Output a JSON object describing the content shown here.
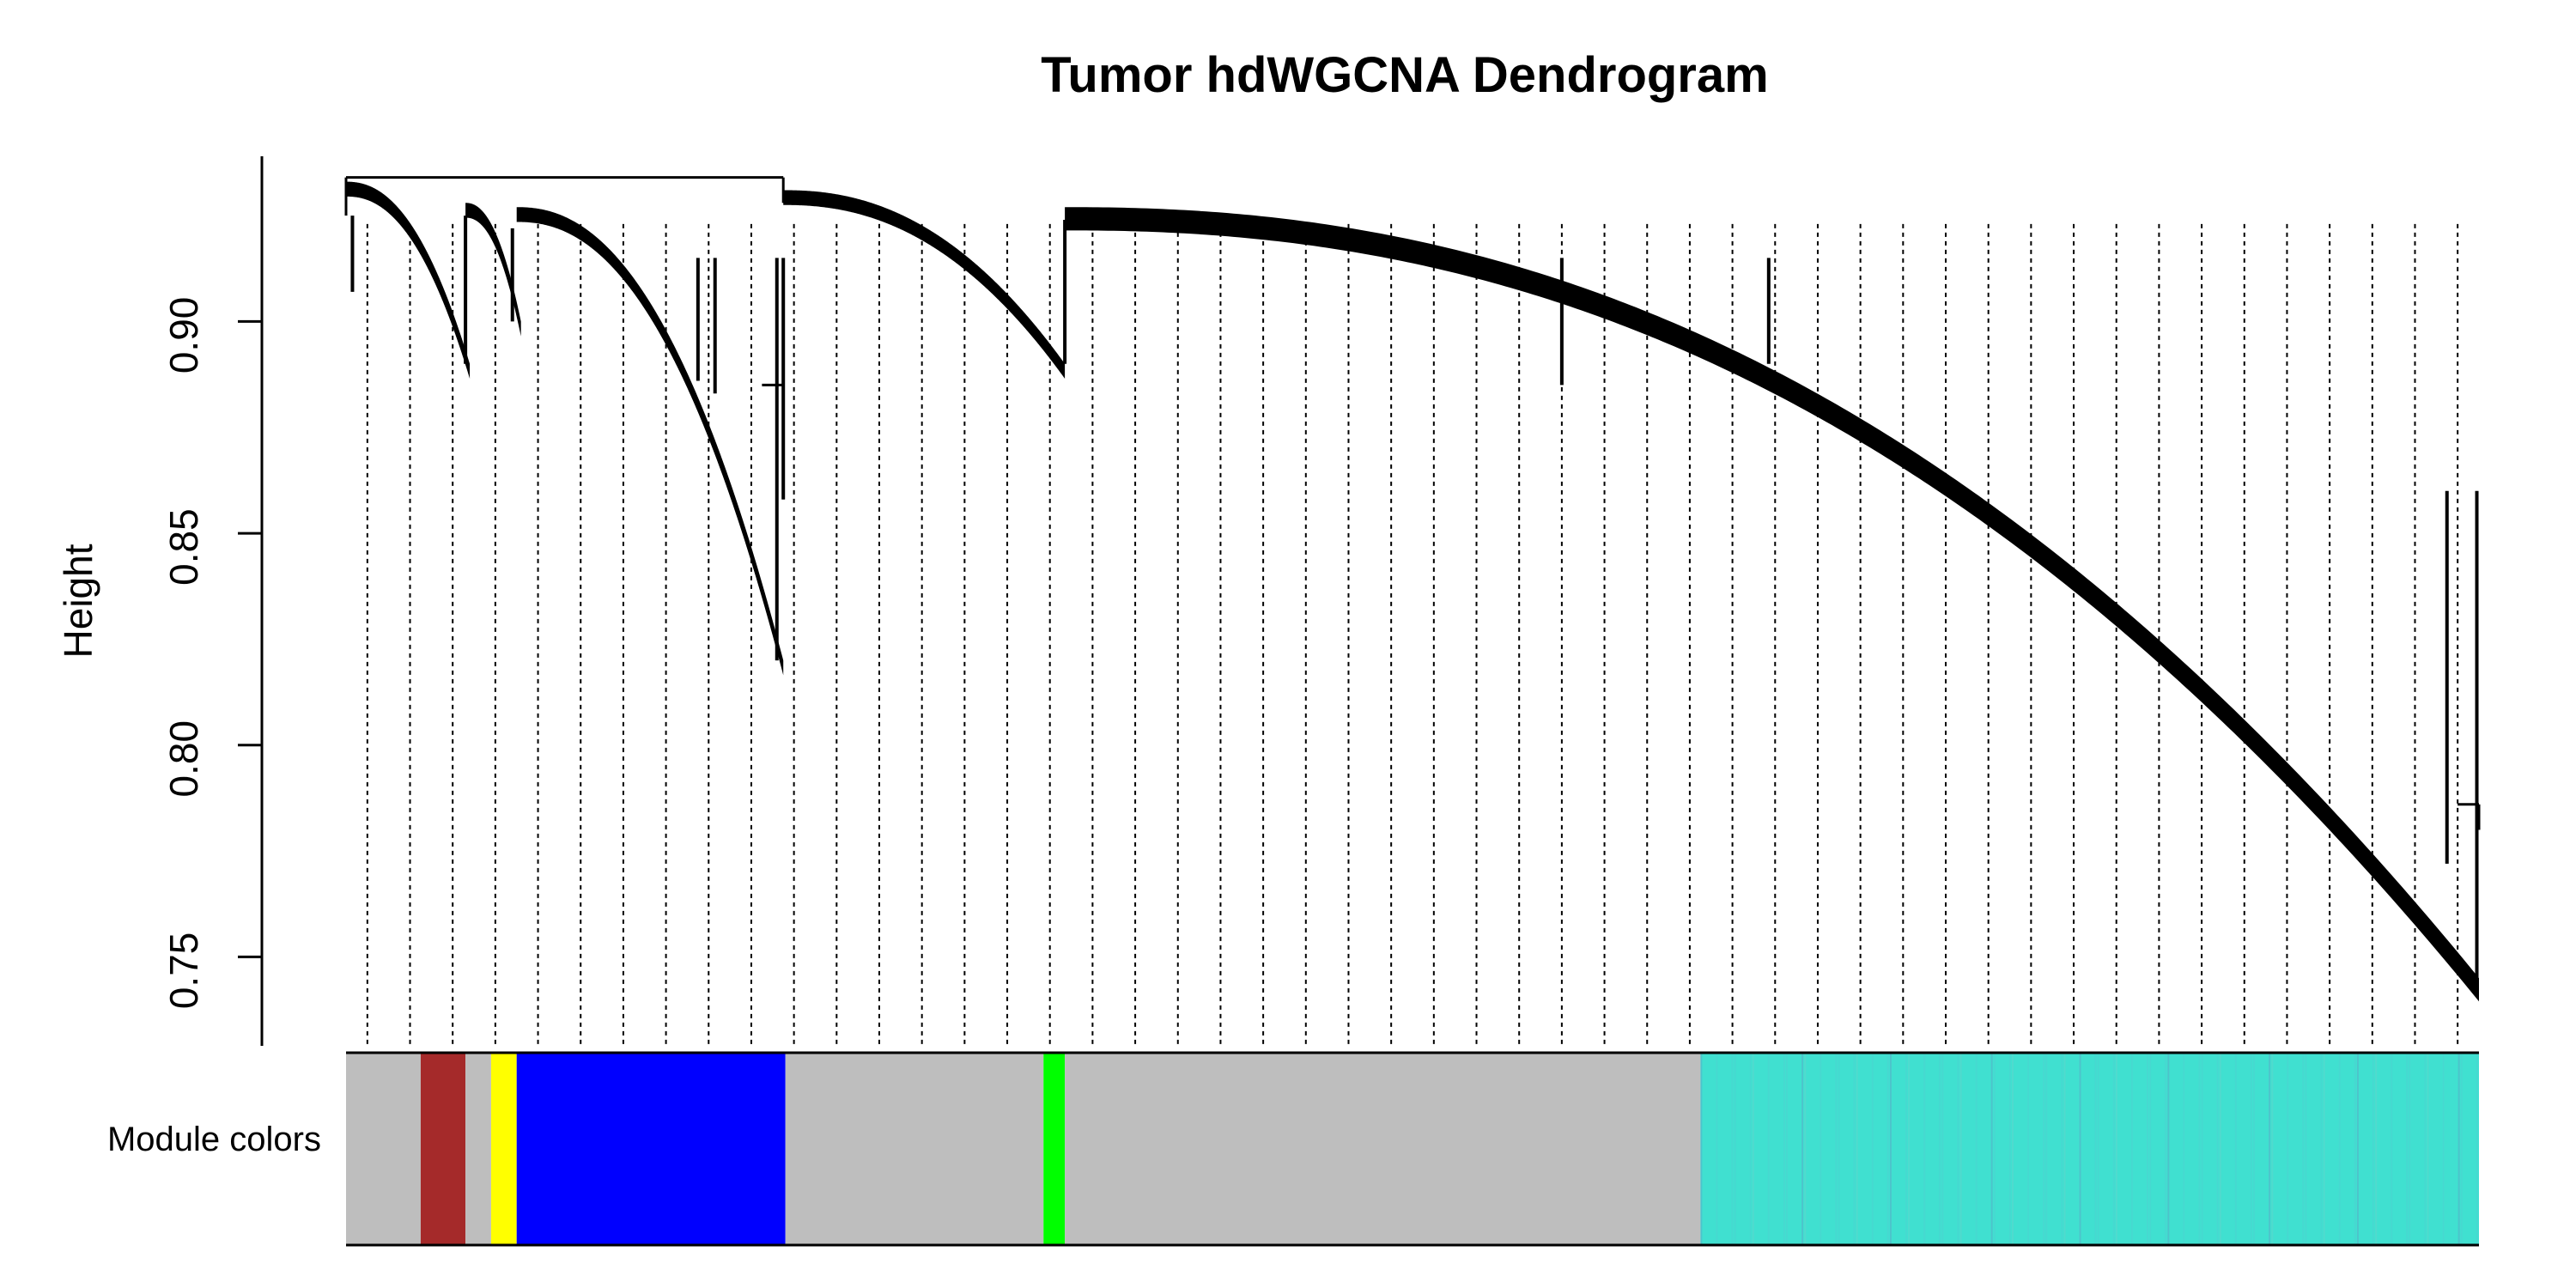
{
  "chart_data": {
    "type": "dendrogram",
    "title": "Tumor hdWGCNA Dendrogram",
    "ylabel": "Height",
    "color_bar_label": "Module colors",
    "yticks": [
      0.75,
      0.8,
      0.85,
      0.9
    ],
    "ytick_labels": [
      "0.75",
      "0.80",
      "0.85",
      "0.90"
    ],
    "ylim": [
      0.729,
      0.939
    ],
    "colors": {
      "grey": "#bebebe",
      "brown": "#a52a2a",
      "yellow": "#ffff00",
      "blue": "#0000ff",
      "green": "#00ff00",
      "turquoise": "#40e0d0"
    },
    "module_color_bands": [
      {
        "module": "grey",
        "start": 0.0,
        "end": 0.035
      },
      {
        "module": "brown",
        "start": 0.035,
        "end": 0.056
      },
      {
        "module": "grey",
        "start": 0.056,
        "end": 0.068
      },
      {
        "module": "yellow",
        "start": 0.068,
        "end": 0.08
      },
      {
        "module": "blue",
        "start": 0.08,
        "end": 0.206
      },
      {
        "module": "grey",
        "start": 0.206,
        "end": 0.327
      },
      {
        "module": "green",
        "start": 0.327,
        "end": 0.337
      },
      {
        "module": "grey",
        "start": 0.337,
        "end": 0.635
      },
      {
        "module": "turquoise",
        "start": 0.635,
        "end": 1.0
      }
    ],
    "branches": [
      {
        "start": 0.0,
        "end": 0.058,
        "top": 0.933,
        "bottom": 0.89
      },
      {
        "start": 0.056,
        "end": 0.082,
        "top": 0.928,
        "bottom": 0.9
      },
      {
        "start": 0.08,
        "end": 0.205,
        "top": 0.927,
        "bottom": 0.82
      },
      {
        "start": 0.205,
        "end": 0.337,
        "top": 0.931,
        "bottom": 0.89
      },
      {
        "start": 0.337,
        "end": 1.0,
        "top": 0.927,
        "bottom": 0.745
      }
    ],
    "notable_dips": [
      {
        "x": 0.003,
        "depth": 0.907
      },
      {
        "x": 0.056,
        "depth": 0.89
      },
      {
        "x": 0.078,
        "depth": 0.9
      },
      {
        "x": 0.165,
        "depth": 0.886
      },
      {
        "x": 0.173,
        "depth": 0.883
      },
      {
        "x": 0.202,
        "depth": 0.82
      },
      {
        "x": 0.205,
        "depth": 0.858
      },
      {
        "x": 0.337,
        "depth": 0.89
      },
      {
        "x": 0.57,
        "depth": 0.885
      },
      {
        "x": 0.667,
        "depth": 0.89
      },
      {
        "x": 0.985,
        "depth": 0.772
      },
      {
        "x": 0.999,
        "depth": 0.745
      }
    ]
  }
}
